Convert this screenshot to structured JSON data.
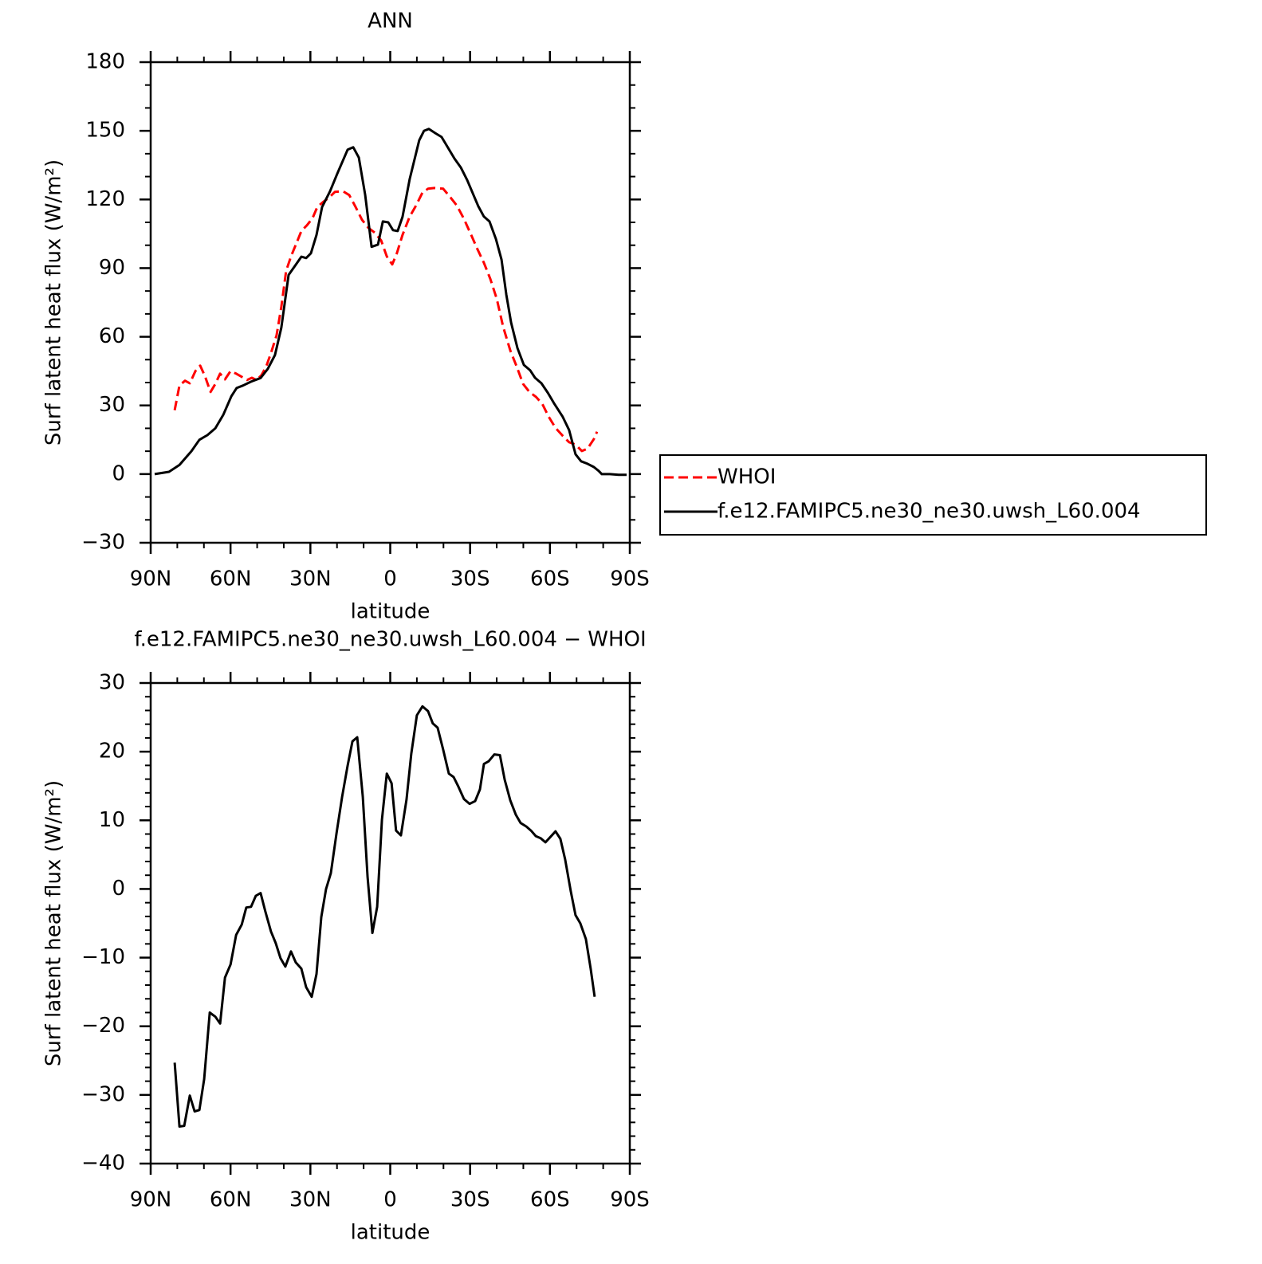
{
  "chart_data": [
    {
      "type": "line",
      "title": "ANN",
      "xlabel": "latitude",
      "ylabel": "Surf latent heat flux (W/m²)",
      "xlim": [
        90,
        -90
      ],
      "xticks": [
        {
          "value": 90,
          "label": "90N"
        },
        {
          "value": 60,
          "label": "60N"
        },
        {
          "value": 30,
          "label": "30N"
        },
        0,
        {
          "value": -30,
          "label": "30S"
        },
        {
          "value": -60,
          "label": "60S"
        },
        {
          "value": -90,
          "label": "90S"
        }
      ],
      "xminor": 2,
      "ylim": [
        -30,
        180
      ],
      "yticks": [
        {
          "value": -30,
          "label": "−30"
        },
        0,
        30,
        60,
        90,
        120,
        150,
        180
      ],
      "yminor": 2,
      "legend": "right",
      "series": [
        {
          "name": "WHOI",
          "color": "#ff0000",
          "dash": true,
          "x": [
            81,
            79.2,
            77.1,
            75.3,
            73.2,
            71.4,
            69.6,
            67.5,
            65.7,
            63.9,
            62.1,
            60,
            57.9,
            55.8,
            53.8,
            52,
            50.2,
            48.4,
            46.6,
            44.8,
            42.7,
            40.9,
            39.1,
            37.3,
            35.2,
            33.4,
            31.3,
            29.2,
            27.4,
            25.3,
            22.9,
            20.8,
            17.8,
            15.4,
            13,
            10.6,
            8.2,
            5.8,
            3.4,
            1.3,
            -0.75,
            -2.5,
            -4.6,
            -7.3,
            -9.7,
            -12.1,
            -14.2,
            -16.6,
            -19.9,
            -22.6,
            -25,
            -27.7,
            -30.4,
            -32.8,
            -35.2,
            -37.6,
            -40,
            -42.4,
            -45.1,
            -47.5,
            -49.9,
            -52.3,
            -54.7,
            -57.1,
            -59.5,
            -62.1,
            -64.8,
            -67.2,
            -69.6,
            -72,
            -74.1,
            -76.5,
            -77.7
          ],
          "values": [
            27.9,
            38.7,
            40.8,
            39.7,
            45,
            47.4,
            42.8,
            35.9,
            39.4,
            43.9,
            41.4,
            45,
            43.9,
            42.5,
            41.1,
            42.1,
            41.1,
            43.2,
            47,
            52.9,
            60.6,
            73.1,
            88.8,
            95.1,
            101,
            106.2,
            108.7,
            111.8,
            116.7,
            118.8,
            120.9,
            123.3,
            123.6,
            121.9,
            116.7,
            111.1,
            107.6,
            105.5,
            102.1,
            95.1,
            91.6,
            96.5,
            104.5,
            112.5,
            117.4,
            123,
            124.7,
            125,
            124.7,
            120.9,
            117.4,
            111.5,
            104.5,
            98.2,
            92.3,
            85.3,
            76.6,
            64.4,
            54,
            47,
            39.4,
            35.9,
            33.8,
            30.7,
            25.1,
            20.2,
            16.7,
            13.9,
            12.9,
            10.1,
            11.1,
            15.3,
            18.5
          ]
        },
        {
          "name": "f.e12.FAMIPC5.ne30_ne30.uwsh_L60.004",
          "color": "#000000",
          "dash": false,
          "x": [
            88.5,
            85.2,
            83.1,
            79.2,
            74.7,
            71.7,
            68.7,
            65.7,
            62.7,
            59.7,
            57.7,
            55.3,
            52.3,
            48.7,
            46,
            43.3,
            40.9,
            38.2,
            35.8,
            33.4,
            31.6,
            29.8,
            27.7,
            25.6,
            22.6,
            19.9,
            16,
            13.9,
            11.8,
            9.4,
            7,
            4.6,
            2.8,
            0.75,
            -1.05,
            -2.8,
            -4.6,
            -7.3,
            -10.9,
            -12.7,
            -14.5,
            -16.9,
            -19.3,
            -22,
            -24.1,
            -26.5,
            -28.9,
            -31.3,
            -33.1,
            -35.2,
            -37.3,
            -39.7,
            -41.8,
            -43.6,
            -45.4,
            -47.8,
            -50.2,
            -52.6,
            -54.4,
            -56.8,
            -59.2,
            -61.5,
            -64.8,
            -67.2,
            -69.6,
            -71.7,
            -74.1,
            -76.5,
            -78.3,
            -79.5,
            -82.5,
            -85.8,
            -88.8
          ],
          "values": [
            0,
            0.6,
            1,
            4,
            10,
            15,
            17,
            20,
            26,
            34,
            37.6,
            38.7,
            40.4,
            42,
            46,
            52,
            64,
            87,
            91,
            95,
            94.4,
            96.5,
            104.5,
            116.7,
            123.6,
            131.3,
            141.8,
            142.8,
            138.3,
            121.9,
            99.3,
            100.3,
            110.4,
            110,
            106.6,
            106.2,
            112.4,
            128.9,
            145.9,
            150,
            150.8,
            149,
            147.3,
            142,
            137.9,
            134,
            128.5,
            121.9,
            117,
            112.5,
            110.4,
            102.7,
            93.7,
            78.4,
            66.2,
            55,
            47.7,
            45.3,
            42.1,
            39.7,
            35.5,
            31,
            25,
            19.2,
            8.7,
            5.6,
            4.5,
            3.1,
            1.4,
            0,
            0,
            -0.3,
            -0.3
          ]
        }
      ]
    },
    {
      "type": "line",
      "title": "f.e12.FAMIPC5.ne30_ne30.uwsh_L60.004 − WHOI",
      "xlabel": "latitude",
      "ylabel": "Surf latent heat flux (W/m²)",
      "xlim": [
        90,
        -90
      ],
      "xticks": [
        {
          "value": 90,
          "label": "90N"
        },
        {
          "value": 60,
          "label": "60N"
        },
        {
          "value": 30,
          "label": "30N"
        },
        0,
        {
          "value": -30,
          "label": "30S"
        },
        {
          "value": -60,
          "label": "60S"
        },
        {
          "value": -90,
          "label": "90S"
        }
      ],
      "xminor": 2,
      "ylim": [
        -40,
        30
      ],
      "yticks": [
        {
          "value": -40,
          "label": "−40"
        },
        {
          "value": -30,
          "label": "−30"
        },
        {
          "value": -20,
          "label": "−20"
        },
        {
          "value": -10,
          "label": "−10"
        },
        0,
        10,
        20,
        30
      ],
      "yminor": 4,
      "series": [
        {
          "color": "#000000",
          "dash": false,
          "x": [
            81,
            79.2,
            77.4,
            75.3,
            73.5,
            71.7,
            69.9,
            67.8,
            65.7,
            63.9,
            62.1,
            60,
            57.9,
            55.8,
            54.1,
            52.3,
            50.5,
            48.7,
            46.9,
            44.8,
            43,
            41.2,
            39.4,
            37.3,
            35.5,
            33.4,
            31.6,
            29.5,
            27.7,
            25.9,
            24.1,
            22.3,
            20.2,
            18.1,
            16,
            14.2,
            12.4,
            10.3,
            8.5,
            6.7,
            4.9,
            3.1,
            1.3,
            -0.5,
            -2.2,
            -4,
            -6.1,
            -7.9,
            -10,
            -12.1,
            -14.2,
            -16,
            -17.8,
            -19.9,
            -22,
            -23.8,
            -25.6,
            -27.7,
            -29.8,
            -31.9,
            -33.7,
            -35.2,
            -37,
            -39.1,
            -41.2,
            -43,
            -45.1,
            -47.2,
            -49,
            -51.1,
            -52.9,
            -54.7,
            -56.5,
            -58.3,
            -60,
            -62.1,
            -63.9,
            -65.7,
            -67.8,
            -69.6,
            -71.4,
            -73.5,
            -75.3,
            -76.8
          ],
          "values": [
            -25.3,
            -34.6,
            -34.5,
            -30.1,
            -32.4,
            -32.2,
            -27.7,
            -18,
            -18.6,
            -19.6,
            -12.9,
            -11,
            -6.7,
            -5.2,
            -2.7,
            -2.6,
            -1,
            -0.6,
            -3.3,
            -6.2,
            -7.9,
            -10.1,
            -11.3,
            -9.1,
            -10.7,
            -11.6,
            -14.3,
            -15.7,
            -12.4,
            -4.1,
            0,
            2.3,
            8.1,
            13.4,
            18,
            21.5,
            22.1,
            13.4,
            1.7,
            -6.4,
            -2.6,
            10.1,
            16.8,
            15.4,
            8.5,
            7.8,
            13,
            19.7,
            25.3,
            26.6,
            25.9,
            24.1,
            23.5,
            20.3,
            16.8,
            16.3,
            14.9,
            13.1,
            12.4,
            12.8,
            14.5,
            18.2,
            18.6,
            19.6,
            19.5,
            15.9,
            12.9,
            10.8,
            9.6,
            9.1,
            8.5,
            7.7,
            7.4,
            6.8,
            7.5,
            8.4,
            7.3,
            4.3,
            -0.3,
            -3.8,
            -5,
            -7.3,
            -11.6,
            -15.7
          ]
        }
      ]
    }
  ]
}
